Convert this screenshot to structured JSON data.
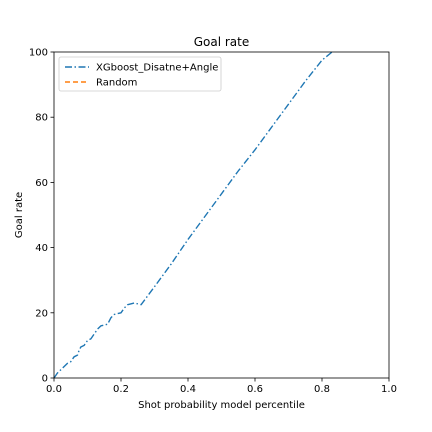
{
  "chart_data": {
    "type": "line",
    "title": "Goal rate",
    "xlabel": "Shot probability model percentile",
    "ylabel": "Goal rate",
    "xlim": [
      0.0,
      1.0
    ],
    "ylim": [
      0,
      100
    ],
    "xticks": [
      "0.0",
      "0.2",
      "0.4",
      "0.6",
      "0.8",
      "1.0"
    ],
    "yticks": [
      "0",
      "20",
      "40",
      "60",
      "80",
      "100"
    ],
    "grid": false,
    "legend_position": "top-left",
    "series": [
      {
        "name": "XGboost_Disatne+Angle",
        "color": "#1f77b4",
        "linestyle": "dashdot",
        "x": [
          0.0,
          0.01,
          0.02,
          0.03,
          0.04,
          0.05,
          0.06,
          0.07,
          0.075,
          0.08,
          0.09,
          0.1,
          0.11,
          0.12,
          0.13,
          0.14,
          0.16,
          0.17,
          0.18,
          0.2,
          0.21,
          0.22,
          0.24,
          0.26,
          0.3,
          0.35,
          0.4,
          0.45,
          0.5,
          0.55,
          0.6,
          0.65,
          0.7,
          0.75,
          0.8,
          0.83
        ],
        "y": [
          0,
          1.5,
          2.5,
          3.5,
          4.5,
          5.0,
          6.5,
          7.0,
          8.5,
          9.5,
          10.0,
          11.5,
          12.0,
          13.5,
          15.0,
          16.0,
          16.5,
          18.5,
          19.5,
          20.0,
          21.5,
          22.5,
          23.0,
          22.5,
          28.0,
          35.0,
          42.5,
          49.5,
          56.5,
          63.5,
          70.0,
          77.0,
          84.0,
          91.0,
          97.5,
          100
        ]
      },
      {
        "name": "Random",
        "color": "#ff7f0e",
        "linestyle": "dashed",
        "x": [],
        "y": []
      }
    ]
  }
}
